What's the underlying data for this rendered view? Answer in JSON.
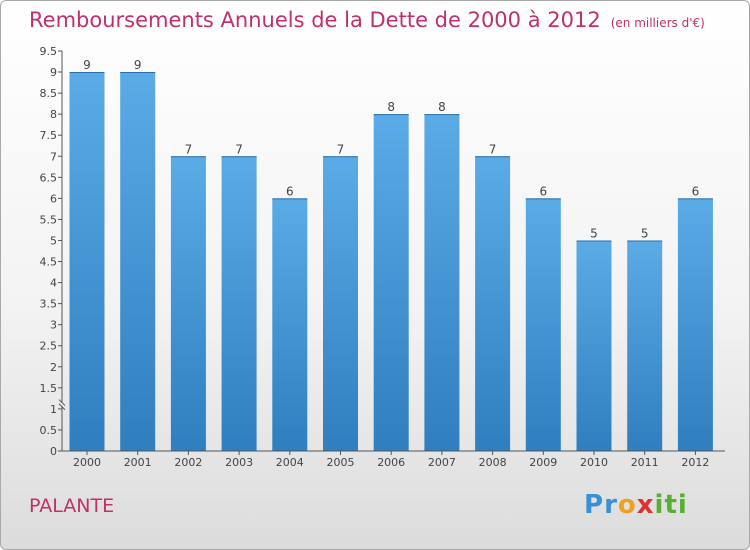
{
  "title": "Remboursements Annuels de la Dette de 2000 à 2012",
  "unit_note": "(en milliers d'€)",
  "commune": "PALANTE",
  "logo": {
    "text": "Proxiti",
    "letters": [
      "P",
      "r",
      "o",
      "x",
      "i",
      "t",
      "i"
    ],
    "colors": [
      "#3a8fd6",
      "#3a8fd6",
      "#f0a020",
      "#e03030",
      "#58b030",
      "#58b030",
      "#58b030"
    ]
  },
  "colors": {
    "accent": "#c0306b",
    "bar_light": "#5aabe6",
    "bar_dark": "#2f7fc0"
  },
  "chart_data": {
    "type": "bar",
    "categories": [
      "2000",
      "2001",
      "2002",
      "2003",
      "2004",
      "2005",
      "2006",
      "2007",
      "2008",
      "2009",
      "2010",
      "2011",
      "2012"
    ],
    "values": [
      9,
      9,
      7,
      7,
      6,
      7,
      8,
      8,
      7,
      6,
      5,
      5,
      6
    ],
    "data_labels": [
      "9",
      "9",
      "7",
      "7",
      "6",
      "7",
      "8",
      "8",
      "7",
      "6",
      "5",
      "5",
      "6"
    ],
    "title": "Remboursements Annuels de la Dette de 2000 à 2012",
    "xlabel": "",
    "ylabel": "",
    "ylim": [
      0,
      9.5
    ],
    "yticks": [
      "0",
      "0.5",
      "1",
      "1.5",
      "2",
      "2.5",
      "3",
      "3.5",
      "4",
      "4.5",
      "5",
      "5.5",
      "6",
      "6.5",
      "7",
      "7.5",
      "8",
      "8.5",
      "9",
      "9.5"
    ],
    "grid": false,
    "axis_break": true
  }
}
